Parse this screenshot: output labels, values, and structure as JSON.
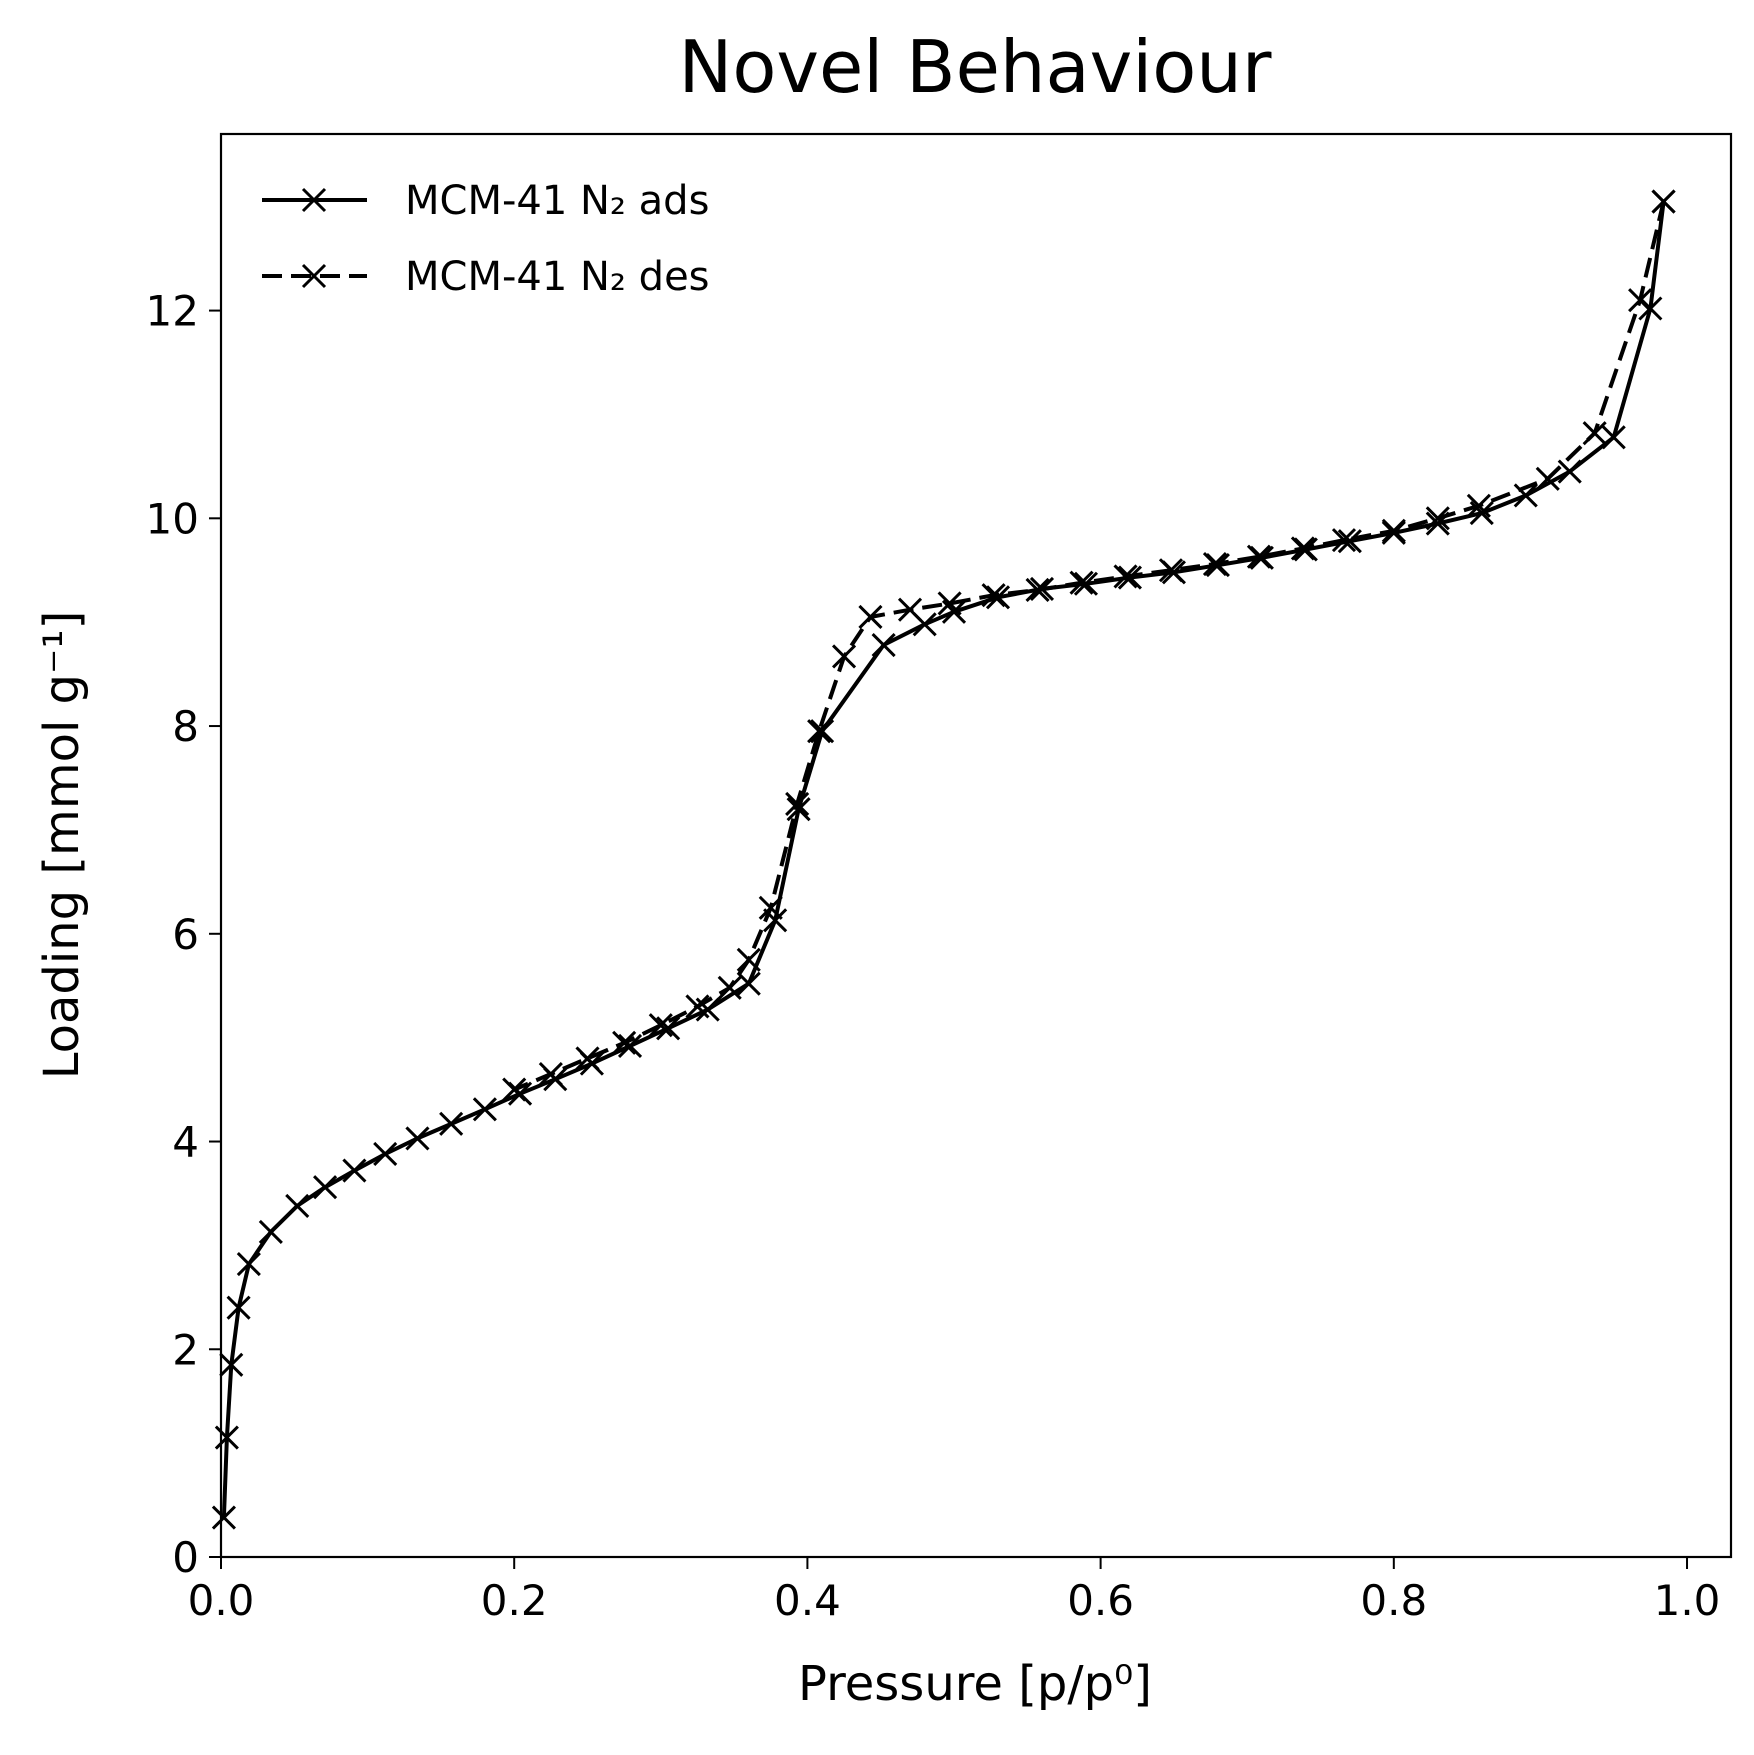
{
  "chart_data": {
    "type": "line",
    "title": "Novel Behaviour",
    "xlabel": "Pressure [p/p⁰]",
    "ylabel": "Loading [mmol g⁻¹]",
    "xlim": [
      0.0,
      1.03
    ],
    "ylim": [
      0.0,
      13.7
    ],
    "xticks": [
      "0.0",
      "0.2",
      "0.4",
      "0.6",
      "0.8",
      "1.0"
    ],
    "yticks": [
      "0",
      "2",
      "4",
      "6",
      "8",
      "10",
      "12"
    ],
    "legend_position": "top-left",
    "series": [
      {
        "name": "MCM-41 N₂ ads",
        "style": "solid",
        "marker": "x",
        "color": "#000000",
        "x": [
          0.002,
          0.004,
          0.007,
          0.012,
          0.019,
          0.034,
          0.052,
          0.071,
          0.091,
          0.112,
          0.134,
          0.157,
          0.18,
          0.204,
          0.228,
          0.253,
          0.279,
          0.305,
          0.332,
          0.36,
          0.378,
          0.394,
          0.41,
          0.452,
          0.48,
          0.5,
          0.53,
          0.56,
          0.59,
          0.62,
          0.65,
          0.68,
          0.71,
          0.74,
          0.77,
          0.8,
          0.83,
          0.86,
          0.89,
          0.92,
          0.95,
          0.975,
          0.984
        ],
        "y": [
          0.38,
          1.15,
          1.85,
          2.4,
          2.82,
          3.13,
          3.38,
          3.56,
          3.72,
          3.88,
          4.03,
          4.17,
          4.31,
          4.46,
          4.6,
          4.75,
          4.92,
          5.09,
          5.27,
          5.52,
          6.13,
          7.2,
          7.95,
          8.78,
          8.98,
          9.1,
          9.24,
          9.32,
          9.37,
          9.43,
          9.48,
          9.55,
          9.62,
          9.7,
          9.78,
          9.86,
          9.95,
          10.05,
          10.22,
          10.45,
          10.78,
          12.02,
          13.05
        ]
      },
      {
        "name": "MCM-41 N₂ des",
        "style": "dashed",
        "marker": "x",
        "color": "#000000",
        "x": [
          0.984,
          0.968,
          0.937,
          0.905,
          0.858,
          0.83,
          0.8,
          0.766,
          0.738,
          0.708,
          0.678,
          0.648,
          0.617,
          0.587,
          0.557,
          0.527,
          0.497,
          0.47,
          0.443,
          0.425,
          0.408,
          0.393,
          0.375,
          0.36,
          0.347,
          0.325,
          0.3,
          0.275,
          0.25,
          0.225,
          0.2
        ],
        "y": [
          13.05,
          12.1,
          10.82,
          10.38,
          10.12,
          10.0,
          9.88,
          9.79,
          9.71,
          9.63,
          9.56,
          9.5,
          9.44,
          9.38,
          9.31,
          9.26,
          9.18,
          9.12,
          9.05,
          8.67,
          7.95,
          7.25,
          6.25,
          5.75,
          5.48,
          5.3,
          5.12,
          4.95,
          4.8,
          4.65,
          4.5
        ]
      }
    ]
  }
}
